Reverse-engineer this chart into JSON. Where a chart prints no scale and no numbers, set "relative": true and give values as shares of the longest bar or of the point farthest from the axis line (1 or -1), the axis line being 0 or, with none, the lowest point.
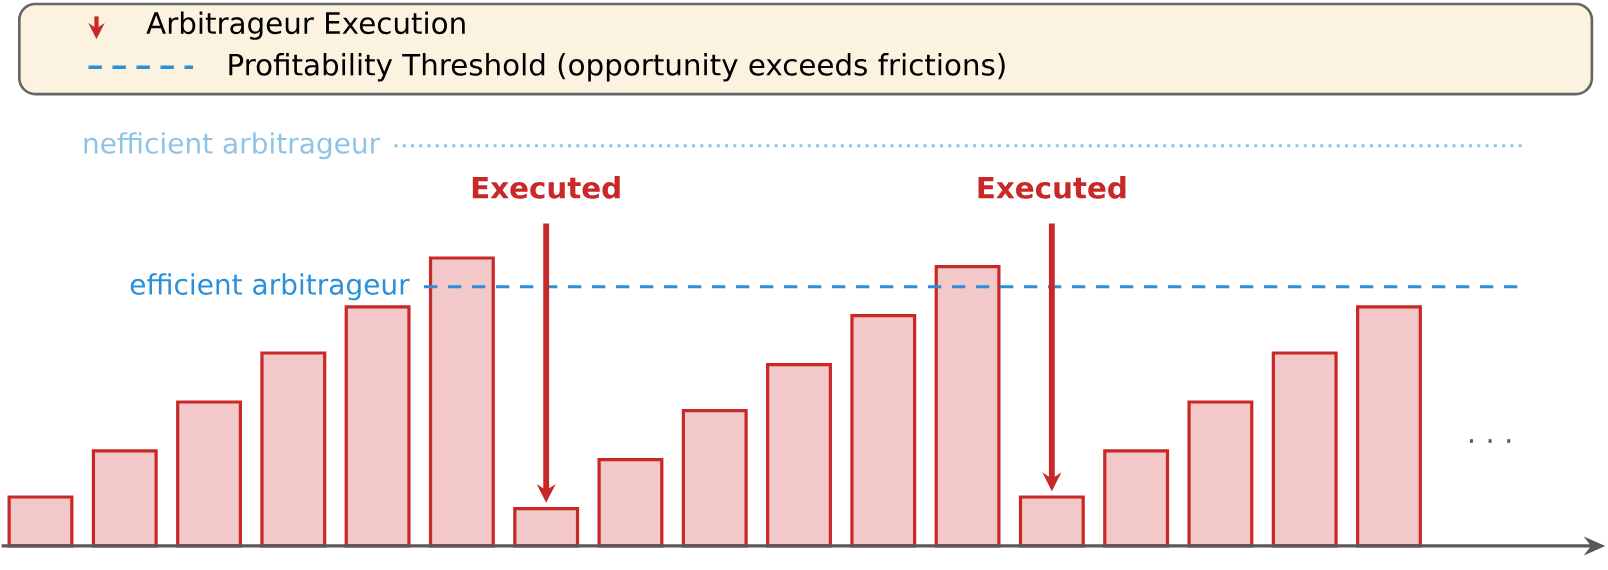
{
  "chart_data": {
    "type": "bar",
    "relative": true,
    "categories": [
      null,
      null,
      null,
      null,
      null,
      null,
      null,
      null,
      null,
      null,
      null,
      null,
      null,
      null,
      null,
      null,
      null
    ],
    "values": [
      0.17,
      0.33,
      0.5,
      0.67,
      0.83,
      1,
      0.13,
      0.3,
      0.47,
      0.63,
      0.8,
      0.97,
      0.17,
      0.33,
      0.5,
      0.67,
      0.83
    ],
    "color": "#f2c8c8",
    "ref_lines": [
      {
        "axis": "y",
        "value": 1.39,
        "label": "nefficient arbitrageur",
        "color": "#8ec3e8",
        "line_style": "dotted"
      },
      {
        "axis": "y",
        "value": 0.9,
        "label": "efficient arbitrageur",
        "color": "#2b8fd9",
        "line_style": "dashed"
      }
    ],
    "annotations": [
      "Arbitrageur Execution",
      "Profitability Threshold (opportunity exceeds frictions)",
      "Executed",
      "Executed",
      "· · ·"
    ]
  }
}
